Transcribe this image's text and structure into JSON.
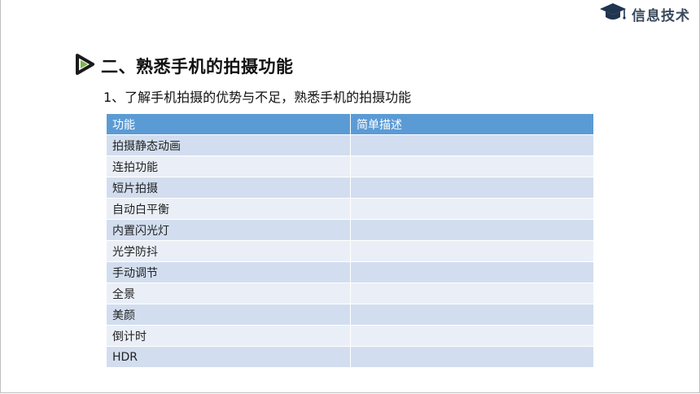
{
  "brand": {
    "text": "信息技术",
    "icon": "graduation-cap-icon"
  },
  "section": {
    "icon": "play-triangle-icon",
    "title": "二、熟悉手机的拍摄功能"
  },
  "subtitle": "1、了解手机拍摄的优势与不足，熟悉手机的拍摄功能",
  "table": {
    "headers": [
      "功能",
      "简单描述"
    ],
    "rows": [
      [
        "拍摄静态动画",
        ""
      ],
      [
        "连拍功能",
        ""
      ],
      [
        "短片拍摄",
        ""
      ],
      [
        "自动白平衡",
        ""
      ],
      [
        "内置闪光灯",
        ""
      ],
      [
        "光学防抖",
        ""
      ],
      [
        "手动调节",
        ""
      ],
      [
        "全景",
        ""
      ],
      [
        "美颜",
        ""
      ],
      [
        "倒计时",
        ""
      ],
      [
        "HDR",
        ""
      ]
    ]
  },
  "colors": {
    "header_bg": "#5b9bd5",
    "row_odd": "#d2deef",
    "row_even": "#eaeff7",
    "accent_green": "#7ab648"
  }
}
